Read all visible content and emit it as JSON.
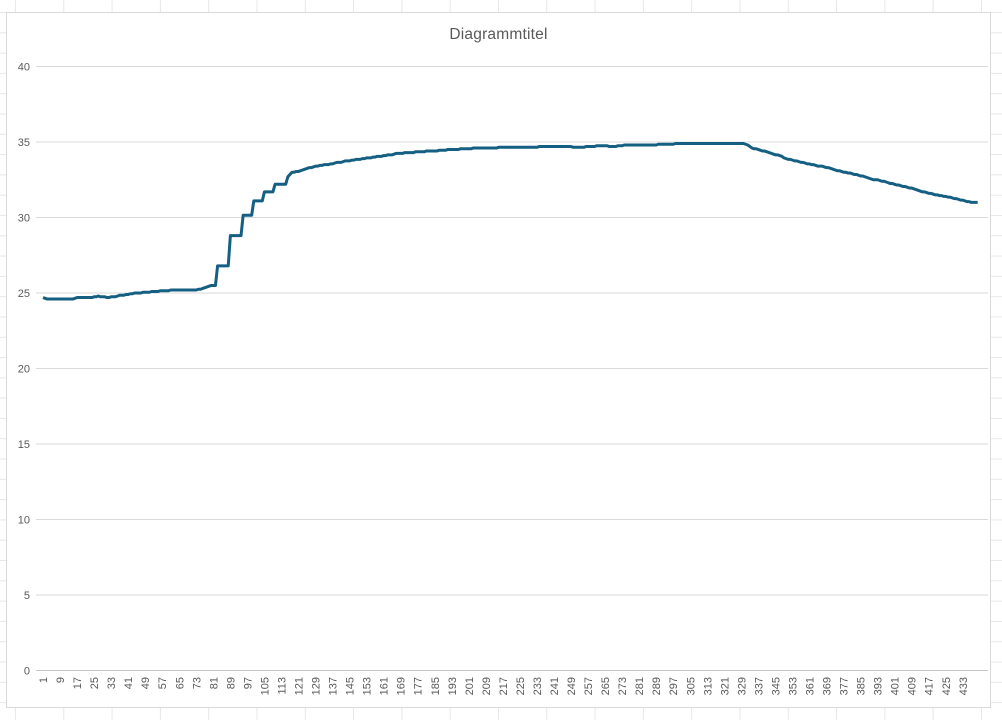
{
  "window": {
    "background": "#ffffff"
  },
  "spreadsheet": {
    "grid_line_color": "#e8e8e8",
    "chart_object_border_color": "#d9d9d9"
  },
  "chart": {
    "title": "Diagrammtitel",
    "colors": {
      "title": "#595959",
      "axis_labels": "#595959",
      "gridlines": "#d9d9d9",
      "axis_line": "#c6c6c6",
      "series": "#156082",
      "plot_background": "#ffffff"
    }
  },
  "chart_data": {
    "type": "line",
    "title": "Diagrammtitel",
    "legend": "none",
    "grid": "horizontal",
    "xlabel": "",
    "ylabel": "",
    "x_axis": {
      "type": "category",
      "first_label": 1,
      "label_step": 8,
      "last_label": 433,
      "label_rotation_degrees": -90,
      "tick_labels": [
        "1",
        "9",
        "17",
        "25",
        "33",
        "41",
        "49",
        "57",
        "65",
        "73",
        "81",
        "89",
        "97",
        "105",
        "113",
        "121",
        "129",
        "137",
        "145",
        "153",
        "161",
        "169",
        "177",
        "185",
        "193",
        "201",
        "209",
        "217",
        "225",
        "233",
        "241",
        "249",
        "257",
        "265",
        "273",
        "281",
        "289",
        "297",
        "305",
        "313",
        "321",
        "329",
        "337",
        "345",
        "353",
        "361",
        "369",
        "377",
        "385",
        "393",
        "401",
        "409",
        "417",
        "425",
        "433"
      ]
    },
    "y_axis": {
      "min": 0,
      "max": 40,
      "tick_step": 5,
      "tick_labels": [
        "0",
        "5",
        "10",
        "15",
        "20",
        "25",
        "30",
        "35",
        "40"
      ]
    },
    "series": [
      {
        "name": "series-1",
        "color": "#156082",
        "n_points": 440,
        "value_quantum": 0.05,
        "anchor_points": [
          [
            1,
            24.7
          ],
          [
            3,
            24.6
          ],
          [
            15,
            24.6
          ],
          [
            17,
            24.7
          ],
          [
            24,
            24.7
          ],
          [
            27,
            24.8
          ],
          [
            31,
            24.7
          ],
          [
            34,
            24.75
          ],
          [
            38,
            24.85
          ],
          [
            41,
            24.9
          ],
          [
            44,
            25.0
          ],
          [
            50,
            25.05
          ],
          [
            54,
            25.1
          ],
          [
            58,
            25.15
          ],
          [
            62,
            25.2
          ],
          [
            73,
            25.2
          ],
          [
            77,
            25.35
          ],
          [
            80,
            25.5
          ],
          [
            82,
            25.5
          ],
          [
            83,
            26.8
          ],
          [
            88,
            26.8
          ],
          [
            89,
            28.8
          ],
          [
            94,
            28.8
          ],
          [
            95,
            30.15
          ],
          [
            99,
            30.15
          ],
          [
            100,
            31.1
          ],
          [
            104,
            31.1
          ],
          [
            105,
            31.7
          ],
          [
            109,
            31.7
          ],
          [
            110,
            32.2
          ],
          [
            115,
            32.2
          ],
          [
            116,
            32.7
          ],
          [
            118,
            33.0
          ],
          [
            121,
            33.05
          ],
          [
            124,
            33.2
          ],
          [
            128,
            33.35
          ],
          [
            132,
            33.45
          ],
          [
            136,
            33.55
          ],
          [
            140,
            33.65
          ],
          [
            144,
            33.75
          ],
          [
            149,
            33.85
          ],
          [
            154,
            33.95
          ],
          [
            159,
            34.05
          ],
          [
            164,
            34.15
          ],
          [
            168,
            34.25
          ],
          [
            173,
            34.3
          ],
          [
            178,
            34.35
          ],
          [
            184,
            34.4
          ],
          [
            193,
            34.5
          ],
          [
            206,
            34.6
          ],
          [
            224,
            34.65
          ],
          [
            242,
            34.7
          ],
          [
            247,
            34.7
          ],
          [
            252,
            34.65
          ],
          [
            258,
            34.7
          ],
          [
            263,
            34.75
          ],
          [
            269,
            34.7
          ],
          [
            275,
            34.8
          ],
          [
            288,
            34.8
          ],
          [
            292,
            34.85
          ],
          [
            303,
            34.9
          ],
          [
            330,
            34.9
          ],
          [
            332,
            34.8
          ],
          [
            334,
            34.6
          ],
          [
            338,
            34.45
          ],
          [
            341,
            34.35
          ],
          [
            344,
            34.2
          ],
          [
            347,
            34.1
          ],
          [
            350,
            33.9
          ],
          [
            353,
            33.8
          ],
          [
            356,
            33.7
          ],
          [
            359,
            33.6
          ],
          [
            362,
            33.5
          ],
          [
            366,
            33.4
          ],
          [
            370,
            33.3
          ],
          [
            374,
            33.1
          ],
          [
            378,
            33.0
          ],
          [
            381,
            32.9
          ],
          [
            384,
            32.8
          ],
          [
            387,
            32.7
          ],
          [
            390,
            32.55
          ],
          [
            394,
            32.45
          ],
          [
            398,
            32.3
          ],
          [
            401,
            32.2
          ],
          [
            404,
            32.1
          ],
          [
            407,
            32.0
          ],
          [
            410,
            31.9
          ],
          [
            413,
            31.75
          ],
          [
            417,
            31.6
          ],
          [
            421,
            31.5
          ],
          [
            424,
            31.4
          ],
          [
            428,
            31.3
          ],
          [
            431,
            31.2
          ],
          [
            434,
            31.1
          ],
          [
            437,
            31.0
          ],
          [
            440,
            31.0
          ]
        ]
      }
    ]
  }
}
